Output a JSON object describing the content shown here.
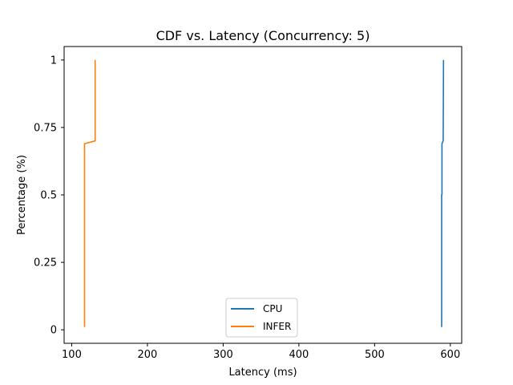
{
  "chart_data": {
    "type": "line",
    "title": "CDF vs. Latency (Concurrency: 5)",
    "xlabel": "Latency (ms)",
    "ylabel": "Percentage (%)",
    "xlim": [
      90,
      615
    ],
    "ylim": [
      -0.05,
      1.05
    ],
    "x_ticks": [
      100,
      200,
      300,
      400,
      500,
      600
    ],
    "y_ticks": [
      0,
      0.25,
      0.5,
      0.75,
      1
    ],
    "x_tick_labels": [
      "100",
      "200",
      "300",
      "400",
      "500",
      "600"
    ],
    "y_tick_labels": [
      "0",
      "0.25",
      "0.5",
      "0.75",
      "1"
    ],
    "grid": false,
    "legend_position": "bottom-center",
    "series": [
      {
        "name": "CPU",
        "color": "#1f77b4",
        "points": [
          [
            588.5,
            0.01
          ],
          [
            588.5,
            0.5
          ],
          [
            589.0,
            0.5
          ],
          [
            589.0,
            0.69
          ],
          [
            590.5,
            0.7
          ],
          [
            591.0,
            1.0
          ]
        ]
      },
      {
        "name": "INFER",
        "color": "#ff7f0e",
        "points": [
          [
            117.0,
            0.01
          ],
          [
            117.0,
            0.69
          ],
          [
            131.0,
            0.7
          ],
          [
            131.0,
            1.0
          ]
        ]
      }
    ]
  }
}
